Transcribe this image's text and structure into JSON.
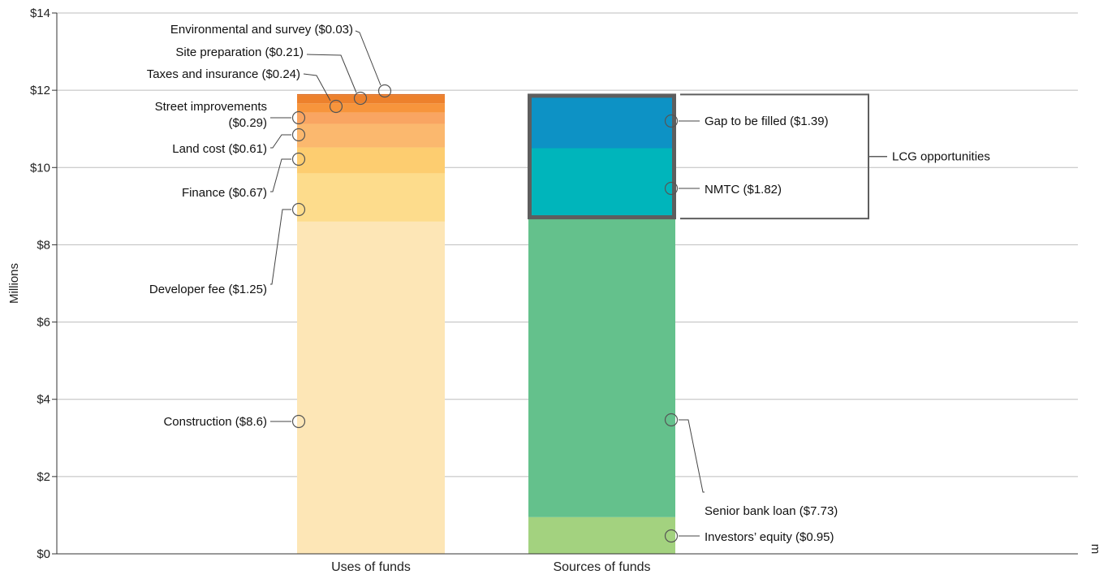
{
  "chart_data": {
    "type": "bar",
    "stacked": true,
    "ylabel": "Millions",
    "ylim": [
      0,
      14
    ],
    "yticks": [
      "$0",
      "$2",
      "$4",
      "$6",
      "$8",
      "$10",
      "$12",
      "$14"
    ],
    "grid": true,
    "categories": [
      "Uses of funds",
      "Sources of funds"
    ],
    "uses": [
      {
        "label": "Construction ($8.6)",
        "value": 8.6,
        "color": "#fde6b6"
      },
      {
        "label": "Developer fee ($1.25)",
        "value": 1.25,
        "color": "#fddc8c"
      },
      {
        "label": "Finance ($0.67)",
        "value": 0.67,
        "color": "#fdcd70"
      },
      {
        "label": "Land cost ($0.61)",
        "value": 0.61,
        "color": "#fbb86e"
      },
      {
        "label": "Street improvements ($0.29)",
        "value": 0.29,
        "color": "#f9a562"
      },
      {
        "label": "Taxes and insurance ($0.24)",
        "value": 0.24,
        "color": "#f7953c"
      },
      {
        "label": "Site preparation ($0.21)",
        "value": 0.21,
        "color": "#ed812c"
      },
      {
        "label": "Environmental and survey ($0.03)",
        "value": 0.03,
        "color": "#de6a1d"
      }
    ],
    "sources": [
      {
        "label": "Investors’ equity ($0.95)",
        "value": 0.95,
        "color": "#a3d27f"
      },
      {
        "label": "Senior bank loan ($7.73)",
        "value": 7.73,
        "color": "#64c18c"
      },
      {
        "label": "NMTC ($1.82)",
        "value": 1.82,
        "color": "#00b5bb"
      },
      {
        "label": "Gap to be filled ($1.39)",
        "value": 1.39,
        "color": "#0d92c5"
      }
    ],
    "bracket_label": "LCG opportunities",
    "side_mark": "m"
  }
}
